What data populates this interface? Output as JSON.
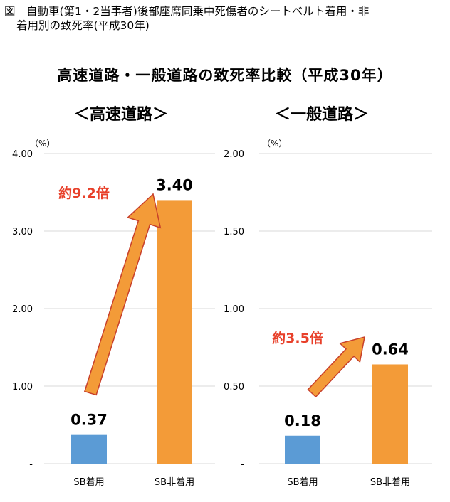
{
  "caption": {
    "line1": "図　自動車(第1・2当事者)後部座席同乗中死傷者のシートベルト着用・非",
    "line2": "着用別の致死率(平成30年)"
  },
  "main_title": "高速道路・一般道路の致死率比較（平成30年）",
  "colors": {
    "sb_on": "#5b9bd5",
    "sb_off": "#f39b38",
    "callout": "#e8402a",
    "arrow_fill": "#f39b38",
    "arrow_stroke": "#c8402a",
    "grid": "#d9d9d9"
  },
  "chart_data": [
    {
      "type": "bar",
      "title": "＜高速道路＞",
      "unit_label": "（%）",
      "categories": [
        "SB着用",
        "SB非着用"
      ],
      "values": [
        0.37,
        3.4
      ],
      "value_labels": [
        "0.37",
        "3.40"
      ],
      "ylim": [
        0,
        4.0
      ],
      "y_ticks": [
        0,
        1.0,
        2.0,
        3.0,
        4.0
      ],
      "y_tick_labels": [
        "-",
        "1.00",
        "2.00",
        "3.00",
        "4.00"
      ],
      "grid": true,
      "annotation": "約9.2倍"
    },
    {
      "type": "bar",
      "title": "＜一般道路＞",
      "unit_label": "（%）",
      "categories": [
        "SB着用",
        "SB非着用"
      ],
      "values": [
        0.18,
        0.64
      ],
      "value_labels": [
        "0.18",
        "0.64"
      ],
      "ylim": [
        0,
        2.0
      ],
      "y_ticks": [
        0,
        0.5,
        1.0,
        1.5,
        2.0
      ],
      "y_tick_labels": [
        "-",
        "0.50",
        "1.00",
        "1.50",
        "2.00"
      ],
      "grid": true,
      "annotation": "約3.5倍"
    }
  ]
}
